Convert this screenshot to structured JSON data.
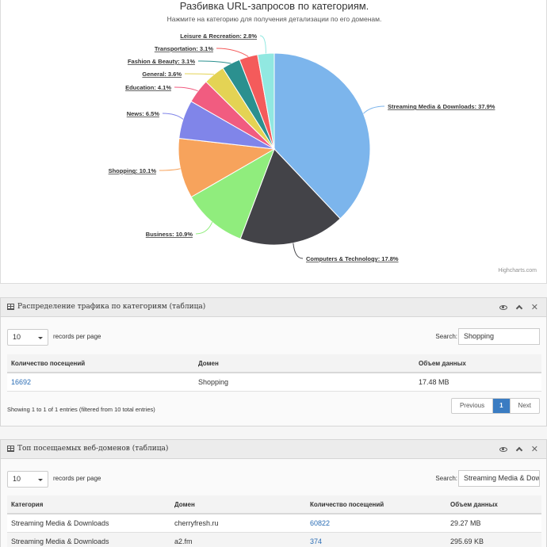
{
  "chart": {
    "title": "Разбивка URL-запросов по категориям.",
    "subtitle": "Нажмите на категорию для получения детализации по его доменам.",
    "credits": "Highcharts.com"
  },
  "chart_data": {
    "type": "pie",
    "title": "Разбивка URL-запросов по категориям.",
    "subtitle": "Нажмите на категорию для получения детализации по его доменам.",
    "slices": [
      {
        "name": "Streaming Media & Downloads",
        "value": 37.9,
        "color": "#7cb5ec"
      },
      {
        "name": "Computers & Technology",
        "value": 17.8,
        "color": "#434348"
      },
      {
        "name": "Business",
        "value": 10.9,
        "color": "#90ed7d"
      },
      {
        "name": "Shopping",
        "value": 10.1,
        "color": "#f7a35c"
      },
      {
        "name": "News",
        "value": 6.5,
        "color": "#8085e9"
      },
      {
        "name": "Education",
        "value": 4.1,
        "color": "#f15c80"
      },
      {
        "name": "General",
        "value": 3.6,
        "color": "#e4d354"
      },
      {
        "name": "Fashion & Beauty",
        "value": 3.1,
        "color": "#2b908f"
      },
      {
        "name": "Transportation",
        "value": 3.1,
        "color": "#f45b5b"
      },
      {
        "name": "Leisure & Recreation",
        "value": 2.8,
        "color": "#91e8e1"
      }
    ]
  },
  "widget1": {
    "title": "Распределение трафика по категориям (таблица)",
    "length_value": "10",
    "length_label": "records per page",
    "search_label": "Search:",
    "search_value": "Shopping",
    "columns": [
      "Количество посещений",
      "Домен",
      "Объем данных"
    ],
    "rows": [
      {
        "visits": "16692",
        "domain": "Shopping",
        "size": "17.48 MB"
      }
    ],
    "info": "Showing 1 to 1 of 1 entries (filtered from 10 total entries)",
    "pager": {
      "prev": "Previous",
      "page": "1",
      "next": "Next"
    }
  },
  "widget2": {
    "title": "Топ посещаемых веб-доменов (таблица)",
    "length_value": "10",
    "length_label": "records per page",
    "search_label": "Search:",
    "search_value": "Streaming Media & Dow",
    "columns": [
      "Категория",
      "Домен",
      "Количество посещений",
      "Объем данных"
    ],
    "rows": [
      {
        "category": "Streaming Media & Downloads",
        "domain": "cherryfresh.ru",
        "visits": "60822",
        "size": "29.27 MB"
      },
      {
        "category": "Streaming Media & Downloads",
        "domain": "a2.fm",
        "visits": "374",
        "size": "295.69 KB"
      }
    ]
  }
}
